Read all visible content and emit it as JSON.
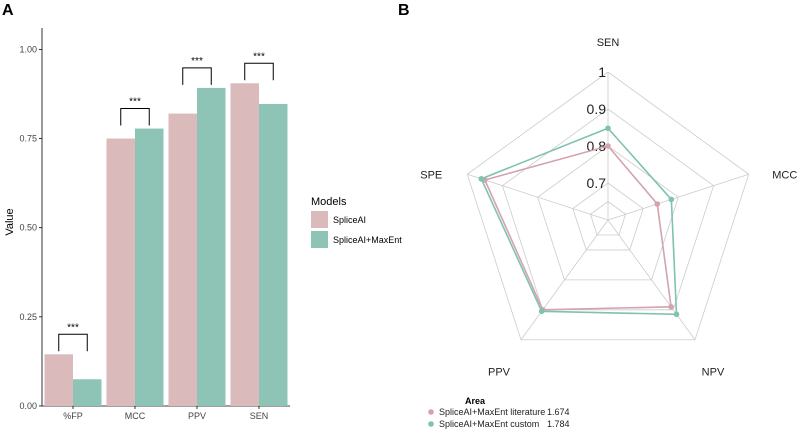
{
  "panels": {
    "a": "A",
    "b": "B"
  },
  "chart_data": [
    {
      "type": "bar",
      "title": "",
      "xlabel": "",
      "ylabel": "Value",
      "ylim": [
        0,
        1.06
      ],
      "yticks": [
        "0.00",
        "0.25",
        "0.50",
        "0.75",
        "1.00"
      ],
      "categories": [
        "%FP",
        "MCC",
        "PPV",
        "SEN"
      ],
      "series": [
        {
          "name": "SpliceAI",
          "color": "#dbbabc",
          "values": [
            0.145,
            0.75,
            0.82,
            0.905
          ]
        },
        {
          "name": "SpliceAI+MaxEnt",
          "color": "#8ec4b6",
          "values": [
            0.075,
            0.778,
            0.892,
            0.847
          ]
        }
      ],
      "significance": [
        "***",
        "***",
        "***",
        "***"
      ],
      "legend": {
        "title": "Models",
        "position": "right"
      }
    },
    {
      "type": "radar",
      "axes": [
        "SEN",
        "MCC",
        "NPV",
        "PPV",
        "SPE"
      ],
      "rings": [
        0.7,
        0.8,
        0.9,
        1.0
      ],
      "ring_labels": [
        "0.7",
        "0.8",
        "0.9",
        "1"
      ],
      "range": [
        0.6,
        1.0
      ],
      "series": [
        {
          "name": "SpliceAI+MaxEnt literature",
          "area": "1.674",
          "color": "#d4a3ab",
          "values": [
            0.8,
            0.74,
            0.89,
            0.9,
            0.95
          ]
        },
        {
          "name": "SpliceAI+MaxEnt custom",
          "area": "1.784",
          "color": "#7fc2b0",
          "values": [
            0.848,
            0.78,
            0.915,
            0.905,
            0.96
          ]
        }
      ],
      "legend": {
        "title": "Area",
        "position": "bottom"
      }
    }
  ]
}
